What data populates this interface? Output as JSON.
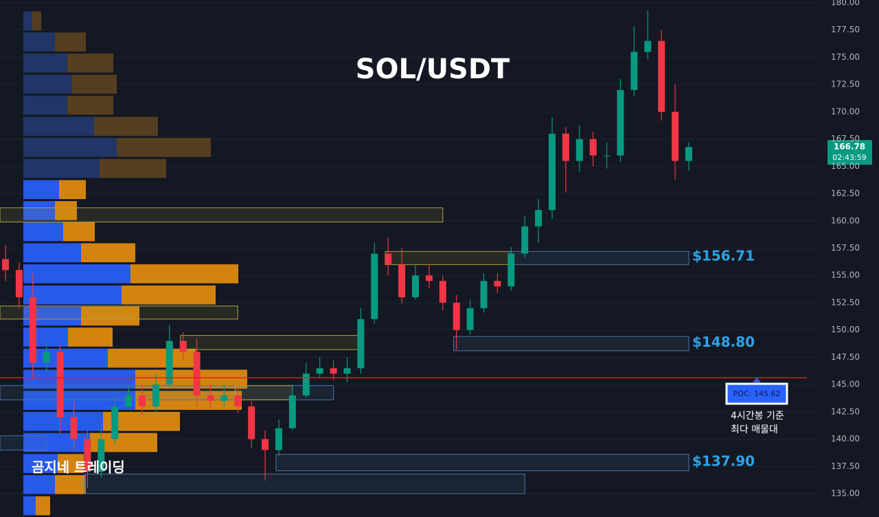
{
  "chart_data": {
    "type": "candlestick",
    "title": "SOL/USDT",
    "watermark": "곰지네 트레이딩",
    "ylim": [
      135,
      180
    ],
    "yticks": [
      {
        "value": 135,
        "label": "135.00"
      },
      {
        "value": 137.5,
        "label": "137.50"
      },
      {
        "value": 140,
        "label": "140.00"
      },
      {
        "value": 142.5,
        "label": "142.50"
      },
      {
        "value": 145,
        "label": "145.00"
      },
      {
        "value": 147.5,
        "label": "147.50"
      },
      {
        "value": 150,
        "label": "150.00"
      },
      {
        "value": 152.5,
        "label": "152.50"
      },
      {
        "value": 155,
        "label": "155.00"
      },
      {
        "value": 157.5,
        "label": "157.50"
      },
      {
        "value": 160,
        "label": "160.00"
      },
      {
        "value": 162.5,
        "label": "162.50"
      },
      {
        "value": 165,
        "label": "165.00"
      },
      {
        "value": 167.5,
        "label": "167.50"
      },
      {
        "value": 170,
        "label": "170.00"
      },
      {
        "value": 172.5,
        "label": "172.50"
      },
      {
        "value": 175,
        "label": "175.00"
      },
      {
        "value": 177.5,
        "label": "177.50"
      },
      {
        "value": 180,
        "label": "180.00"
      }
    ],
    "grid": true,
    "up_color": "#089981",
    "down_color": "#f23645",
    "open": [
      156.5,
      155.5,
      153,
      147,
      148,
      142,
      140,
      137,
      140,
      143,
      144,
      143,
      145,
      149,
      148,
      144,
      143.5,
      144,
      143,
      140,
      139,
      141,
      144,
      146,
      146.5,
      146,
      146.5,
      151,
      157,
      156,
      153,
      155,
      154.5,
      152.5,
      150,
      152,
      154.5,
      154,
      157,
      159.5,
      161,
      168,
      165.5,
      167.5,
      166,
      166,
      172,
      175.5,
      176.5,
      170,
      165.5
    ],
    "high": [
      157.8,
      156.2,
      155.2,
      148.8,
      148.6,
      143.5,
      140.8,
      141,
      144,
      145,
      145,
      146,
      150.5,
      149.8,
      149.2,
      145,
      145,
      144.8,
      143.5,
      140.8,
      141.8,
      145,
      147,
      147.5,
      147.2,
      147.5,
      152,
      158,
      158.5,
      157.5,
      156,
      156,
      155,
      153.2,
      152.8,
      155.2,
      155.2,
      157.6,
      160.5,
      162,
      169.5,
      168.6,
      168.8,
      168.2,
      167.2,
      173,
      177.8,
      179.3,
      177.5,
      172.5,
      167.2
    ],
    "low": [
      154.5,
      152,
      145.5,
      146.2,
      140.5,
      139,
      135.5,
      136.5,
      139.5,
      142.8,
      142.2,
      142.5,
      144.8,
      147.2,
      143,
      142.8,
      143,
      142.4,
      139.2,
      136.2,
      138.4,
      140.8,
      143.8,
      145.6,
      145.4,
      145.2,
      146,
      150.6,
      155,
      152.4,
      152.8,
      153.8,
      151.8,
      148.2,
      149.6,
      151.6,
      153.4,
      153.6,
      156.6,
      158,
      160.2,
      162.6,
      164.5,
      165,
      164.8,
      165.4,
      171.4,
      174.8,
      169.2,
      163.8,
      164.6
    ],
    "close": [
      155.5,
      153,
      147,
      148,
      142,
      140,
      137,
      140,
      143,
      144,
      143,
      145,
      149,
      148,
      144,
      143.5,
      144,
      143,
      140,
      139,
      141,
      144,
      146,
      146.5,
      146,
      146.5,
      151,
      157,
      156,
      153,
      155,
      154.5,
      152.5,
      150,
      152,
      154.5,
      154,
      157,
      159.5,
      161,
      168,
      165.5,
      167.5,
      166,
      166,
      172,
      175.5,
      176.5,
      170,
      165.5,
      166.78
    ],
    "volume_profile": {
      "levels": [
        178.3,
        176.37,
        174.44,
        172.5,
        170.57,
        168.64,
        166.71,
        164.78,
        162.84,
        160.91,
        158.98,
        157.05,
        155.12,
        153.18,
        151.25,
        149.32,
        147.39,
        145.46,
        143.52,
        141.59,
        139.66,
        137.73,
        135.8,
        133.86
      ],
      "buy": [
        13,
        46,
        64,
        71,
        64,
        103,
        136,
        111,
        52,
        46,
        58,
        84,
        156,
        143,
        84,
        65,
        123,
        163,
        163,
        116,
        97,
        50,
        46,
        18
      ],
      "sell": [
        13,
        45,
        67,
        65,
        67,
        93,
        137,
        97,
        39,
        32,
        46,
        79,
        157,
        137,
        85,
        65,
        128,
        163,
        155,
        112,
        98,
        38,
        45,
        21
      ],
      "value_area": [
        133,
        163.8
      ],
      "buy_color": "#2962ff",
      "sell_color": "#e8900c",
      "outside_buy_color": "#22386e",
      "outside_sell_color": "#5c4220"
    },
    "zones": [
      {
        "low": 159.9,
        "high": 161.2,
        "start": 0,
        "end": 32,
        "color": "#b8a23a"
      },
      {
        "low": 156.0,
        "high": 157.2,
        "start": 28,
        "end": 37,
        "color": "#b8a23a"
      },
      {
        "low": 148.2,
        "high": 149.5,
        "start": 13,
        "end": 26,
        "color": "#b8a23a"
      },
      {
        "low": 151.0,
        "high": 152.2,
        "start": 0,
        "end": 17,
        "color": "#b8a23a"
      },
      {
        "low": 143.6,
        "high": 144.9,
        "start": 0,
        "end": 24,
        "color": "#4a78a8"
      },
      {
        "low": 143.6,
        "high": 144.9,
        "start": 17,
        "end": 21,
        "color": "#b8a23a"
      },
      {
        "low": 135.0,
        "high": 136.8,
        "start": 6,
        "end": 38,
        "color": "#4a78a8"
      },
      {
        "low": 139.0,
        "high": 140.3,
        "start": 0,
        "end": 3,
        "color": "#4a78a8"
      },
      {
        "low": 156.0,
        "high": 157.2,
        "start": 37,
        "end": 50,
        "color": "#4a78a8",
        "value": 156.71,
        "label": "$156.71"
      },
      {
        "low": 148.1,
        "high": 149.4,
        "start": 33,
        "end": 50,
        "color": "#4a78a8",
        "value": 148.8,
        "label": "$148.80"
      },
      {
        "low": 137.1,
        "high": 138.6,
        "start": 20,
        "end": 50,
        "color": "#4a78a8",
        "value": 137.9,
        "label": "$137.90"
      }
    ],
    "poc": {
      "value": 145.62,
      "label": "POC: 145.62",
      "color": "#e01f1f",
      "note": [
        "4시간봉 기준",
        "최다 매물대"
      ]
    },
    "current_price": {
      "value": 166.78,
      "label": "166.78",
      "countdown": "02:43:59"
    }
  }
}
